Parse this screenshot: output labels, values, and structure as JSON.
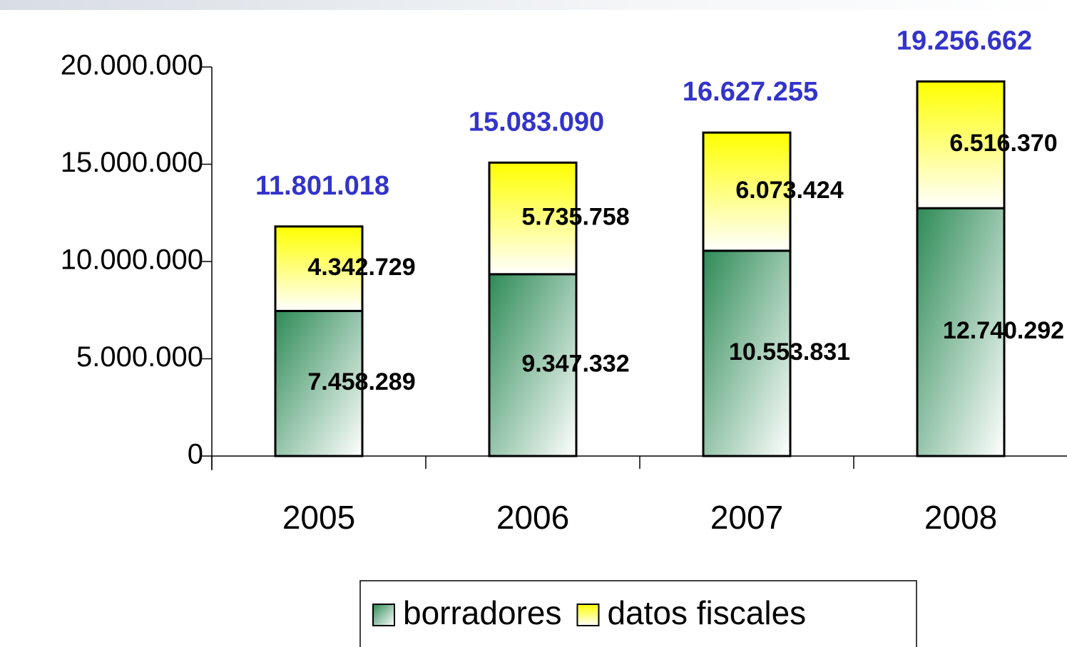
{
  "chart_data": {
    "type": "stacked_bar",
    "categories": [
      "2005",
      "2006",
      "2007",
      "2008"
    ],
    "series": [
      {
        "name": "borradores",
        "color": "#2e8b57",
        "values": [
          7458289,
          9347332,
          10553831,
          12740292
        ],
        "value_labels": [
          "7.458.289",
          "9.347.332",
          "10.553.831",
          "12.740.292"
        ]
      },
      {
        "name": "datos fiscales",
        "color": "#ffff00",
        "values": [
          4342729,
          5735758,
          6073424,
          6516370
        ],
        "value_labels": [
          "4.342.729",
          "5.735.758",
          "6.073.424",
          "6.516.370"
        ]
      }
    ],
    "totals": {
      "color": "#3333cc",
      "values": [
        11801018,
        15083090,
        16627255,
        19256662
      ],
      "value_labels": [
        "11.801.018",
        "15.083.090",
        "16.627.255",
        "19.256.662"
      ]
    },
    "ylim": [
      0,
      20000000
    ],
    "yticks": [
      {
        "value": 0,
        "label": "0"
      },
      {
        "value": 5000000,
        "label": "5.000.000"
      },
      {
        "value": 10000000,
        "label": "10.000.000"
      },
      {
        "value": 15000000,
        "label": "15.000.000"
      },
      {
        "value": 20000000,
        "label": "20.000.000"
      }
    ],
    "legend": "bottom"
  }
}
